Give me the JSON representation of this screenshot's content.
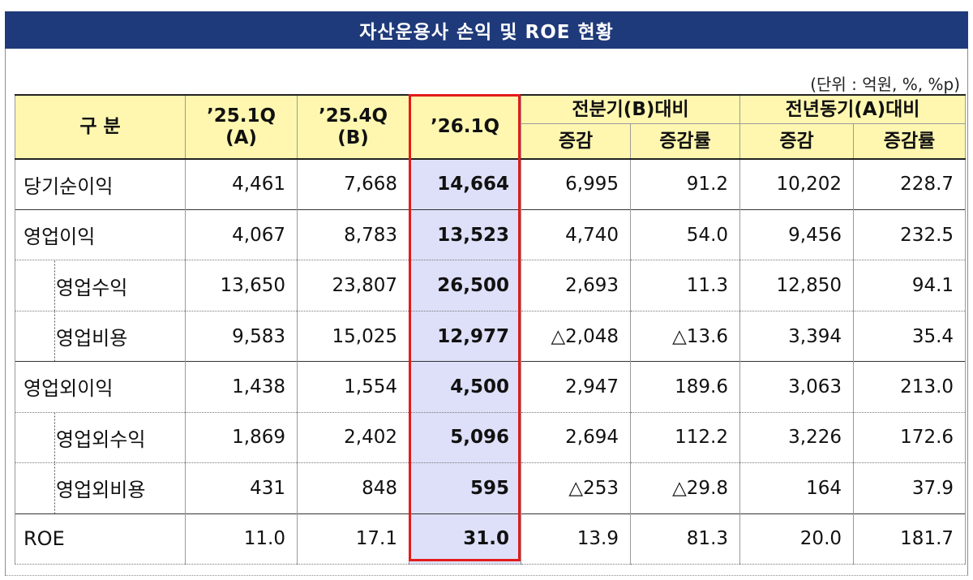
{
  "title": "자산운용사 손익 및 ROE 현황",
  "unit": "(단위 : 억원, %, %p)",
  "header": {
    "category": "구  분",
    "col_a": "’25.1Q (A)",
    "col_a_line1": "’25.1Q",
    "col_a_line2": "(A)",
    "col_b_line1": "’25.4Q",
    "col_b_line2": "(B)",
    "col_c": "’26.1Q",
    "group_qoq": "전분기(B)대비",
    "group_yoy": "전년동기(A)대비",
    "change": "증감",
    "change_rate": "증감률"
  },
  "rows": [
    {
      "label": "당기순이익",
      "a": "4,461",
      "b": "7,668",
      "c": "14,664",
      "qoq": "6,995",
      "qoq_rate": "91.2",
      "yoy": "10,202",
      "yoy_rate": "228.7"
    },
    {
      "label": "영업이익",
      "a": "4,067",
      "b": "8,783",
      "c": "13,523",
      "qoq": "4,740",
      "qoq_rate": "54.0",
      "yoy": "9,456",
      "yoy_rate": "232.5"
    },
    {
      "label": "영업수익",
      "a": "13,650",
      "b": "23,807",
      "c": "26,500",
      "qoq": "2,693",
      "qoq_rate": "11.3",
      "yoy": "12,850",
      "yoy_rate": "94.1"
    },
    {
      "label": "영업비용",
      "a": "9,583",
      "b": "15,025",
      "c": "12,977",
      "qoq": "△2,048",
      "qoq_rate": "△13.6",
      "yoy": "3,394",
      "yoy_rate": "35.4"
    },
    {
      "label": "영업외이익",
      "a": "1,438",
      "b": "1,554",
      "c": "4,500",
      "qoq": "2,947",
      "qoq_rate": "189.6",
      "yoy": "3,063",
      "yoy_rate": "213.0"
    },
    {
      "label": "영업외수익",
      "a": "1,869",
      "b": "2,402",
      "c": "5,096",
      "qoq": "2,694",
      "qoq_rate": "112.2",
      "yoy": "3,226",
      "yoy_rate": "172.6"
    },
    {
      "label": "영업외비용",
      "a": "431",
      "b": "848",
      "c": "595",
      "qoq": "△253",
      "qoq_rate": "△29.8",
      "yoy": "164",
      "yoy_rate": "37.9"
    },
    {
      "label": "ROE",
      "a": "11.0",
      "b": "17.1",
      "c": "31.0",
      "qoq": "13.9",
      "qoq_rate": "81.3",
      "yoy": "20.0",
      "yoy_rate": "181.7"
    }
  ],
  "colors": {
    "title_bg": "#1f3a7a",
    "header_bg": "#fff7b0",
    "highlight_bg": "#dde0f8",
    "highlight_border": "#e31b1b"
  }
}
